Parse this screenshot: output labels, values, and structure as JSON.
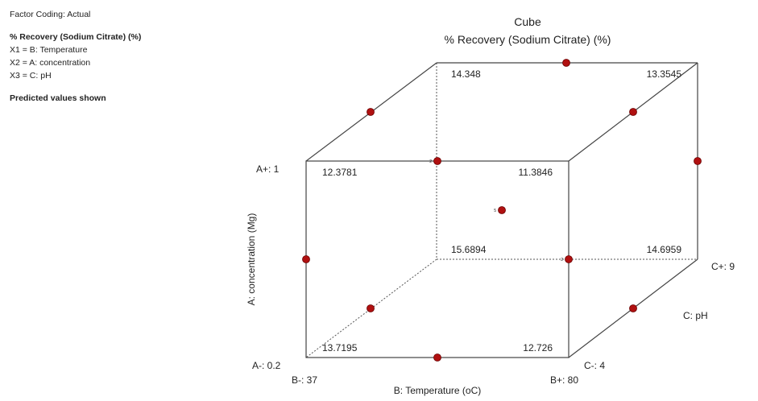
{
  "info": {
    "factor_coding": "Factor Coding: Actual",
    "response": "% Recovery (Sodium Citrate) (%)",
    "x1": "X1 = B: Temperature",
    "x2": "X2 = A: concentration",
    "x3": "X3 = C: pH",
    "note": "Predicted values shown"
  },
  "chart_data": {
    "type": "cube",
    "title": "Cube",
    "subtitle": "% Recovery (Sodium Citrate) (%)",
    "axes": {
      "x": {
        "label": "B: Temperature (oC)",
        "low": "B-: 37",
        "high": "B+: 80"
      },
      "y": {
        "label": "A: concentration (Mg)",
        "low": "A-: 0.2",
        "high": "A+: 1"
      },
      "z": {
        "label": "C: pH",
        "low": "C-: 4",
        "high": "C+: 9"
      }
    },
    "corners": [
      {
        "B": -1,
        "A": -1,
        "C": -1,
        "value": "13.7195"
      },
      {
        "B": 1,
        "A": -1,
        "C": -1,
        "value": "12.726"
      },
      {
        "B": -1,
        "A": 1,
        "C": -1,
        "value": "12.3781"
      },
      {
        "B": 1,
        "A": 1,
        "C": -1,
        "value": "11.3846"
      },
      {
        "B": -1,
        "A": -1,
        "C": 1,
        "value": "15.6894"
      },
      {
        "B": 1,
        "A": -1,
        "C": 1,
        "value": "14.6959"
      },
      {
        "B": -1,
        "A": 1,
        "C": 1,
        "value": "14.348"
      },
      {
        "B": 1,
        "A": 1,
        "C": 1,
        "value": "13.3545"
      }
    ],
    "design_points": [
      {
        "B": 0,
        "A": -1,
        "C": -1
      },
      {
        "B": -1,
        "A": 0,
        "C": -1
      },
      {
        "B": 0,
        "A": 1,
        "C": -1,
        "count": "2"
      },
      {
        "B": 1,
        "A": 0,
        "C": -1,
        "count": "2"
      },
      {
        "B": -1,
        "A": -1,
        "C": 0
      },
      {
        "B": 1,
        "A": -1,
        "C": 0
      },
      {
        "B": -1,
        "A": 1,
        "C": 0
      },
      {
        "B": 1,
        "A": 1,
        "C": 0
      },
      {
        "B": 1,
        "A": 0,
        "C": 1
      },
      {
        "B": 0,
        "A": 1,
        "C": 1
      },
      {
        "B": 0,
        "A": 0,
        "C": 0,
        "count": "5"
      }
    ],
    "point_color": "#b01010"
  }
}
